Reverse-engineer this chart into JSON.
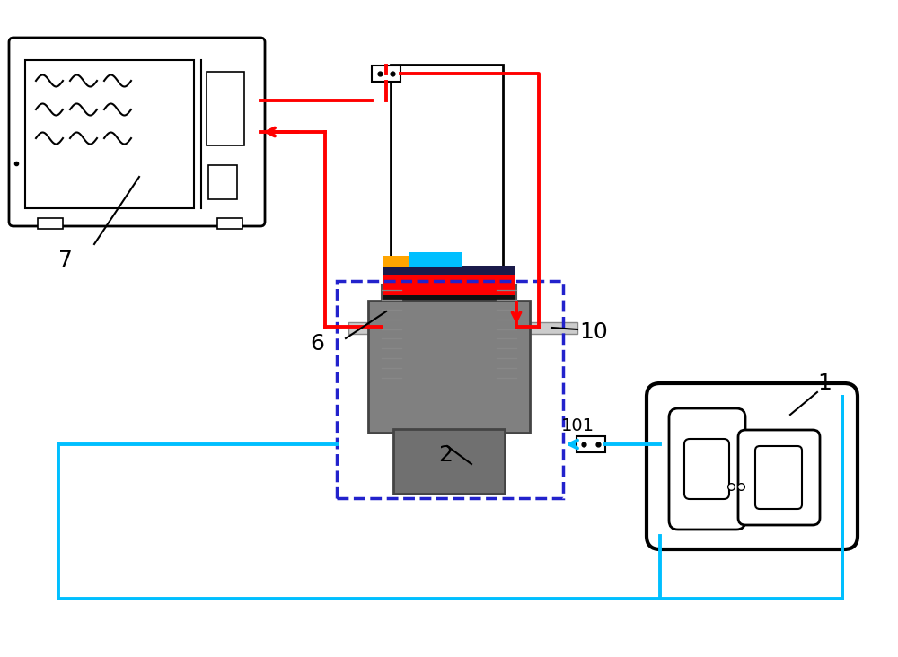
{
  "bg_color": "#ffffff",
  "red_color": "#ff0000",
  "cyan_color": "#00bfff",
  "dashed_blue": "#2222cc",
  "gray1": "#808080",
  "gray2": "#606060",
  "gray3": "#b0b0b0",
  "orange": "#ffa500",
  "dark_layer": "#111111",
  "dark_blue_layer": "#00008b",
  "black": "#000000",
  "lw_pipe": 2.8,
  "lw_device": 2.0,
  "connector_color": "#333333"
}
